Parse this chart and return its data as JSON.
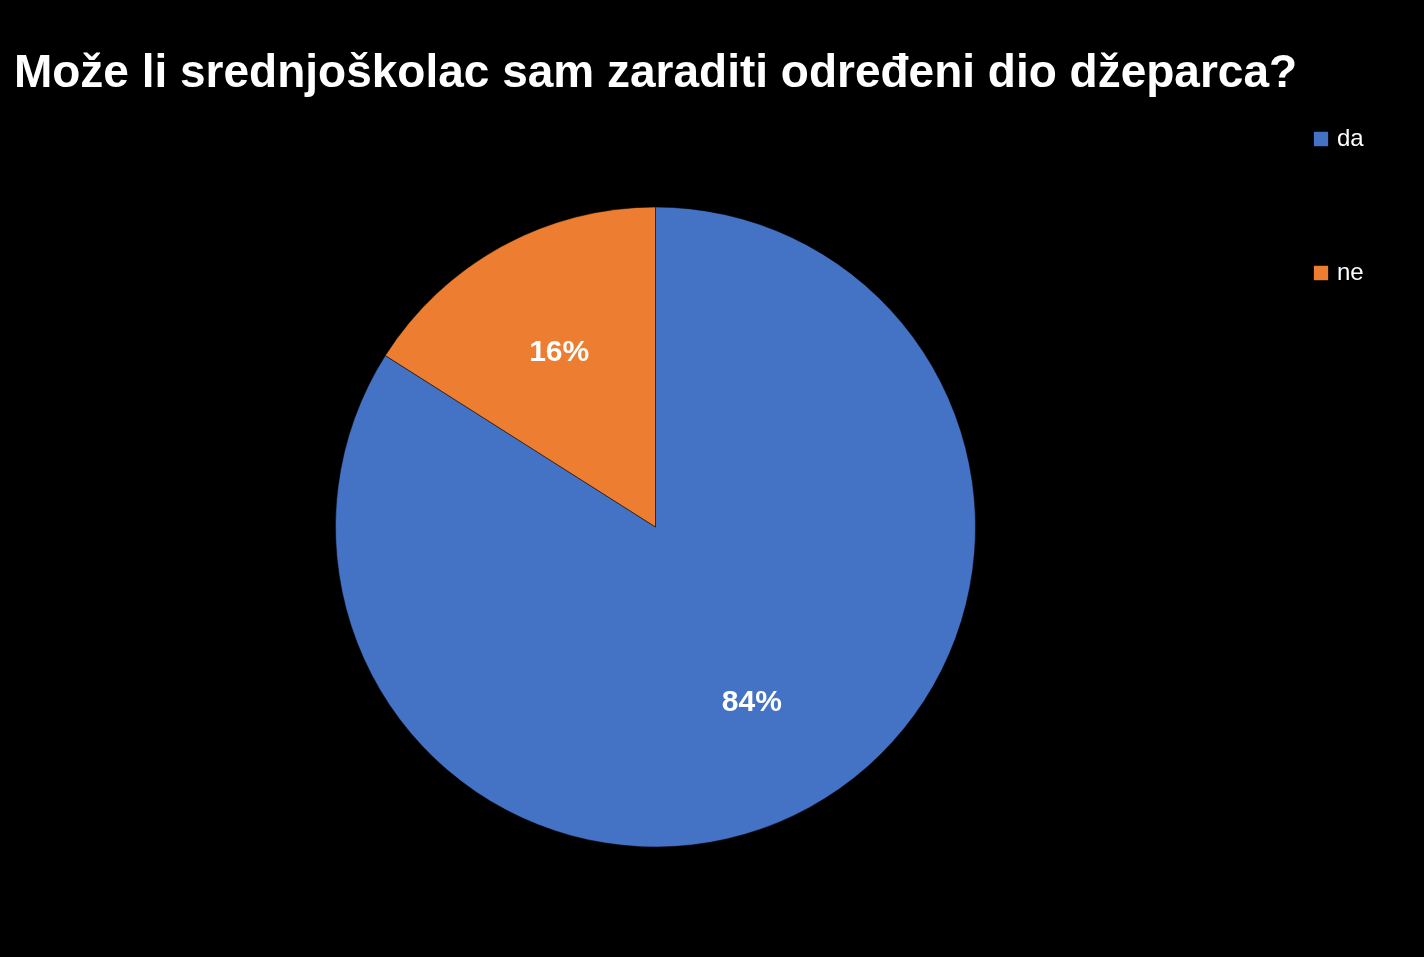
{
  "chart_data": {
    "type": "pie",
    "title": "Može li srednjoškolac sam zaraditi određeni dio džeparca?",
    "categories": [
      "da",
      "ne"
    ],
    "values": [
      84,
      16
    ],
    "colors": [
      "#4472c4",
      "#ed7d31"
    ],
    "value_labels": [
      "84%",
      "16%"
    ],
    "legend": "right"
  }
}
